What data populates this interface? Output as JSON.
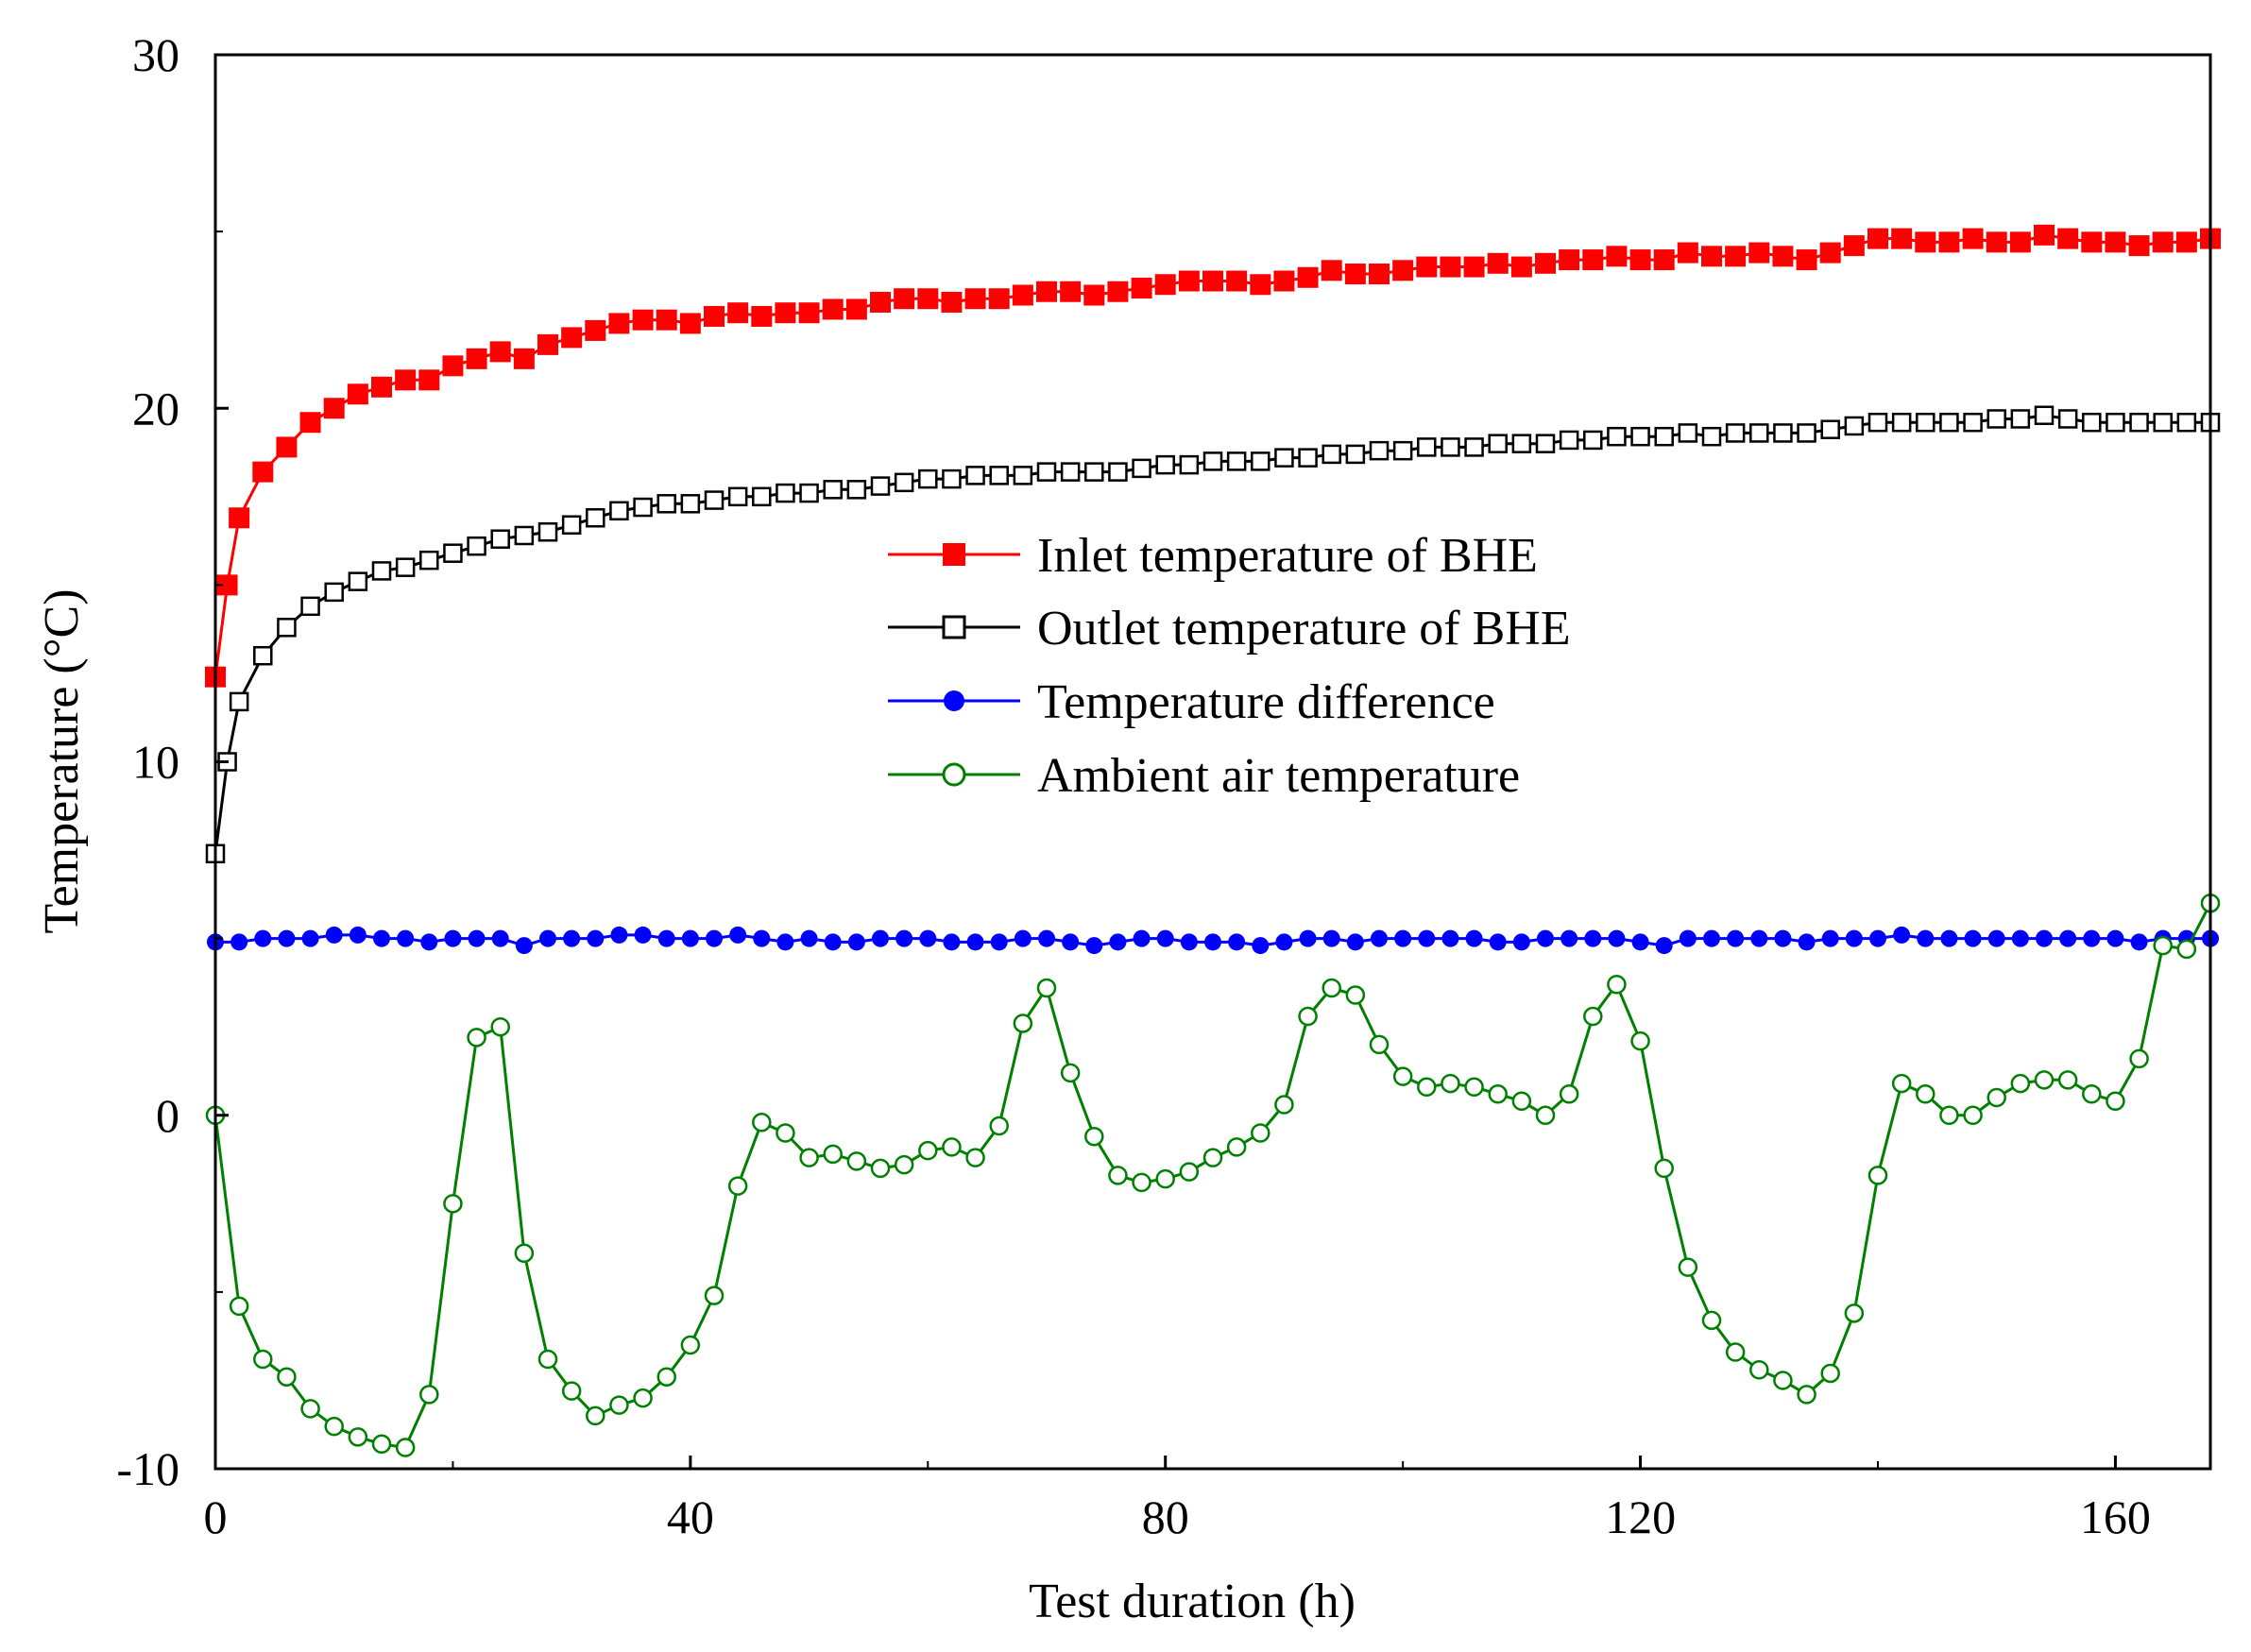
{
  "chart_data": {
    "type": "line",
    "xlabel": "Test duration (h)",
    "ylabel": "Temperature (°C)",
    "xlim": [
      0,
      168
    ],
    "ylim": [
      -10,
      30
    ],
    "xticks": [
      0,
      40,
      80,
      120,
      160
    ],
    "yticks": [
      -10,
      0,
      10,
      20,
      30
    ],
    "xtick_labels": [
      "0",
      "40",
      "80",
      "120",
      "160"
    ],
    "ytick_labels": [
      "-10",
      "0",
      "10",
      "20",
      "30"
    ],
    "grid": false,
    "legend_position": "center",
    "series": [
      {
        "name": "Inlet temperature of BHE",
        "color": "#ff0000",
        "marker": "filled-square",
        "x": [
          0,
          1,
          2,
          4,
          6,
          8,
          10,
          12,
          14,
          16,
          18,
          20,
          22,
          24,
          26,
          28,
          30,
          32,
          34,
          36,
          38,
          40,
          42,
          44,
          46,
          48,
          50,
          52,
          54,
          56,
          58,
          60,
          62,
          64,
          66,
          68,
          70,
          72,
          74,
          76,
          78,
          80,
          82,
          84,
          86,
          88,
          90,
          92,
          94,
          96,
          98,
          100,
          102,
          104,
          106,
          108,
          110,
          112,
          114,
          116,
          118,
          120,
          122,
          124,
          126,
          128,
          130,
          132,
          134,
          136,
          138,
          140,
          142,
          144,
          146,
          148,
          150,
          152,
          154,
          156,
          158,
          160,
          162,
          164,
          166,
          168
        ],
        "y": [
          12.4,
          15.0,
          16.9,
          18.2,
          18.9,
          19.6,
          20.0,
          20.4,
          20.6,
          20.8,
          20.8,
          21.2,
          21.4,
          21.6,
          21.4,
          21.8,
          22.0,
          22.2,
          22.4,
          22.5,
          22.5,
          22.4,
          22.6,
          22.7,
          22.6,
          22.7,
          22.7,
          22.8,
          22.8,
          23.0,
          23.1,
          23.1,
          23.0,
          23.1,
          23.1,
          23.2,
          23.3,
          23.3,
          23.2,
          23.3,
          23.4,
          23.5,
          23.6,
          23.6,
          23.6,
          23.5,
          23.6,
          23.7,
          23.9,
          23.8,
          23.8,
          23.9,
          24.0,
          24.0,
          24.0,
          24.1,
          24.0,
          24.1,
          24.2,
          24.2,
          24.3,
          24.2,
          24.2,
          24.4,
          24.3,
          24.3,
          24.4,
          24.3,
          24.2,
          24.4,
          24.6,
          24.8,
          24.8,
          24.7,
          24.7,
          24.8,
          24.7,
          24.7,
          24.9,
          24.8,
          24.7,
          24.7,
          24.6,
          24.7,
          24.7,
          24.8
        ]
      },
      {
        "name": "Outlet temperature of BHE",
        "color": "#000000",
        "marker": "open-square",
        "x": [
          0,
          1,
          2,
          4,
          6,
          8,
          10,
          12,
          14,
          16,
          18,
          20,
          22,
          24,
          26,
          28,
          30,
          32,
          34,
          36,
          38,
          40,
          42,
          44,
          46,
          48,
          50,
          52,
          54,
          56,
          58,
          60,
          62,
          64,
          66,
          68,
          70,
          72,
          74,
          76,
          78,
          80,
          82,
          84,
          86,
          88,
          90,
          92,
          94,
          96,
          98,
          100,
          102,
          104,
          106,
          108,
          110,
          112,
          114,
          116,
          118,
          120,
          122,
          124,
          126,
          128,
          130,
          132,
          134,
          136,
          138,
          140,
          142,
          144,
          146,
          148,
          150,
          152,
          154,
          156,
          158,
          160,
          162,
          164,
          166,
          168
        ],
        "y": [
          7.4,
          10.0,
          11.7,
          13.0,
          13.8,
          14.4,
          14.8,
          15.1,
          15.4,
          15.5,
          15.7,
          15.9,
          16.1,
          16.3,
          16.4,
          16.5,
          16.7,
          16.9,
          17.1,
          17.2,
          17.3,
          17.3,
          17.4,
          17.5,
          17.5,
          17.6,
          17.6,
          17.7,
          17.7,
          17.8,
          17.9,
          18.0,
          18.0,
          18.1,
          18.1,
          18.1,
          18.2,
          18.2,
          18.2,
          18.2,
          18.3,
          18.4,
          18.4,
          18.5,
          18.5,
          18.5,
          18.6,
          18.6,
          18.7,
          18.7,
          18.8,
          18.8,
          18.9,
          18.9,
          18.9,
          19.0,
          19.0,
          19.0,
          19.1,
          19.1,
          19.2,
          19.2,
          19.2,
          19.3,
          19.2,
          19.3,
          19.3,
          19.3,
          19.3,
          19.4,
          19.5,
          19.6,
          19.6,
          19.6,
          19.6,
          19.6,
          19.7,
          19.7,
          19.8,
          19.7,
          19.6,
          19.6,
          19.6,
          19.6,
          19.6,
          19.6
        ]
      },
      {
        "name": "Temperature difference",
        "color": "#0000ff",
        "marker": "filled-circle",
        "x": [
          0,
          2,
          4,
          6,
          8,
          10,
          12,
          14,
          16,
          18,
          20,
          22,
          24,
          26,
          28,
          30,
          32,
          34,
          36,
          38,
          40,
          42,
          44,
          46,
          48,
          50,
          52,
          54,
          56,
          58,
          60,
          62,
          64,
          66,
          68,
          70,
          72,
          74,
          76,
          78,
          80,
          82,
          84,
          86,
          88,
          90,
          92,
          94,
          96,
          98,
          100,
          102,
          104,
          106,
          108,
          110,
          112,
          114,
          116,
          118,
          120,
          122,
          124,
          126,
          128,
          130,
          132,
          134,
          136,
          138,
          140,
          142,
          144,
          146,
          148,
          150,
          152,
          154,
          156,
          158,
          160,
          162,
          164,
          166,
          168
        ],
        "y": [
          4.9,
          4.9,
          5.0,
          5.0,
          5.0,
          5.1,
          5.1,
          5.0,
          5.0,
          4.9,
          5.0,
          5.0,
          5.0,
          4.8,
          5.0,
          5.0,
          5.0,
          5.1,
          5.1,
          5.0,
          5.0,
          5.0,
          5.1,
          5.0,
          4.9,
          5.0,
          4.9,
          4.9,
          5.0,
          5.0,
          5.0,
          4.9,
          4.9,
          4.9,
          5.0,
          5.0,
          4.9,
          4.8,
          4.9,
          5.0,
          5.0,
          4.9,
          4.9,
          4.9,
          4.8,
          4.9,
          5.0,
          5.0,
          4.9,
          5.0,
          5.0,
          5.0,
          5.0,
          5.0,
          4.9,
          4.9,
          5.0,
          5.0,
          5.0,
          5.0,
          4.9,
          4.8,
          5.0,
          5.0,
          5.0,
          5.0,
          5.0,
          4.9,
          5.0,
          5.0,
          5.0,
          5.1,
          5.0,
          5.0,
          5.0,
          5.0,
          5.0,
          5.0,
          5.0,
          5.0,
          5.0,
          4.9,
          5.0,
          5.0,
          5.0
        ]
      },
      {
        "name": "Ambient air temperature",
        "color": "#008000",
        "marker": "open-circle",
        "x": [
          0,
          2,
          4,
          6,
          8,
          10,
          12,
          14,
          16,
          18,
          20,
          22,
          24,
          26,
          28,
          30,
          32,
          34,
          36,
          38,
          40,
          42,
          44,
          46,
          48,
          50,
          52,
          54,
          56,
          58,
          60,
          62,
          64,
          66,
          68,
          70,
          72,
          74,
          76,
          78,
          80,
          82,
          84,
          86,
          88,
          90,
          92,
          94,
          96,
          98,
          100,
          102,
          104,
          106,
          108,
          110,
          112,
          114,
          116,
          118,
          120,
          122,
          124,
          126,
          128,
          130,
          132,
          134,
          136,
          138,
          140,
          142,
          144,
          146,
          148,
          150,
          152,
          154,
          156,
          158,
          160,
          162,
          164,
          166,
          168
        ],
        "y": [
          0.0,
          -5.4,
          -6.9,
          -7.4,
          -8.3,
          -8.8,
          -9.1,
          -9.3,
          -9.4,
          -7.9,
          -2.5,
          2.2,
          2.5,
          -3.9,
          -6.9,
          -7.8,
          -8.5,
          -8.2,
          -8.0,
          -7.4,
          -6.5,
          -5.1,
          -2.0,
          -0.2,
          -0.5,
          -1.2,
          -1.1,
          -1.3,
          -1.5,
          -1.4,
          -1.0,
          -0.9,
          -1.2,
          -0.3,
          2.6,
          3.6,
          1.2,
          -0.6,
          -1.7,
          -1.9,
          -1.8,
          -1.6,
          -1.2,
          -0.9,
          -0.5,
          0.3,
          2.8,
          3.6,
          3.4,
          2.0,
          1.1,
          0.8,
          0.9,
          0.8,
          0.6,
          0.4,
          0.0,
          0.6,
          2.8,
          3.7,
          2.1,
          -1.5,
          -4.3,
          -5.8,
          -6.7,
          -7.2,
          -7.5,
          -7.9,
          -7.3,
          -5.6,
          -1.7,
          0.9,
          0.6,
          0.0,
          0.0,
          0.5,
          0.9,
          1.0,
          1.0,
          0.6,
          0.4,
          1.6,
          4.8,
          4.7,
          6.0
        ]
      }
    ]
  }
}
